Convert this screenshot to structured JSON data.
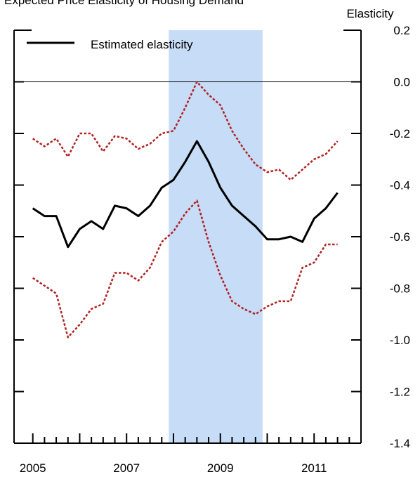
{
  "header": {
    "partial_title": "Expected Price Elasticity of Housing Demand"
  },
  "chart_data": {
    "type": "line",
    "ylabel": "Elasticity",
    "ylim": [
      -1.4,
      0.2
    ],
    "xlim": [
      2004.6,
      2012.0
    ],
    "x_tick_labels": [
      "2005",
      "2007",
      "2009",
      "2011"
    ],
    "x_tick_values": [
      2005,
      2007,
      2009,
      2011
    ],
    "y_ticks": [
      0.2,
      0.0,
      -0.2,
      -0.4,
      -0.6,
      -0.8,
      -1.0,
      -1.2,
      -1.4
    ],
    "y_tick_labels": [
      "0.2",
      "0.0",
      "-0.2",
      "-0.4",
      "-0.6",
      "-0.8",
      "-1.0",
      "-1.2",
      "-1.4"
    ],
    "zero_line": true,
    "legend": {
      "placement": "top-left",
      "entries": [
        "Estimated elasticity"
      ]
    },
    "shaded_period": {
      "start": 2007.9,
      "end": 2009.9
    },
    "colors": {
      "estimate": "#000000",
      "bands": "#b22222",
      "shade": "#c6dcf7"
    },
    "x": [
      2005.0,
      2005.25,
      2005.5,
      2005.75,
      2006.0,
      2006.25,
      2006.5,
      2006.75,
      2007.0,
      2007.25,
      2007.5,
      2007.75,
      2008.0,
      2008.25,
      2008.5,
      2008.75,
      2009.0,
      2009.25,
      2009.5,
      2009.75,
      2010.0,
      2010.25,
      2010.5,
      2010.75,
      2011.0,
      2011.25,
      2011.5
    ],
    "series": [
      {
        "name": "Estimated elasticity",
        "style": "solid",
        "values": [
          -0.49,
          -0.52,
          -0.52,
          -0.64,
          -0.57,
          -0.54,
          -0.57,
          -0.48,
          -0.49,
          -0.52,
          -0.48,
          -0.41,
          -0.38,
          -0.31,
          -0.23,
          -0.31,
          -0.41,
          -0.48,
          -0.52,
          -0.56,
          -0.61,
          -0.61,
          -0.6,
          -0.62,
          -0.53,
          -0.49,
          -0.43
        ]
      },
      {
        "style": "dotted",
        "values": [
          -0.22,
          -0.25,
          -0.22,
          -0.29,
          -0.2,
          -0.2,
          -0.27,
          -0.21,
          -0.22,
          -0.26,
          -0.24,
          -0.2,
          -0.19,
          -0.1,
          0.0,
          -0.05,
          -0.09,
          -0.19,
          -0.26,
          -0.32,
          -0.35,
          -0.34,
          -0.38,
          -0.34,
          -0.3,
          -0.28,
          -0.23
        ]
      },
      {
        "style": "dotted",
        "values": [
          -0.76,
          -0.79,
          -0.82,
          -0.99,
          -0.94,
          -0.88,
          -0.86,
          -0.74,
          -0.74,
          -0.77,
          -0.72,
          -0.62,
          -0.58,
          -0.51,
          -0.46,
          -0.62,
          -0.75,
          -0.85,
          -0.88,
          -0.9,
          -0.87,
          -0.85,
          -0.85,
          -0.72,
          -0.7,
          -0.63,
          -0.63
        ]
      }
    ]
  }
}
